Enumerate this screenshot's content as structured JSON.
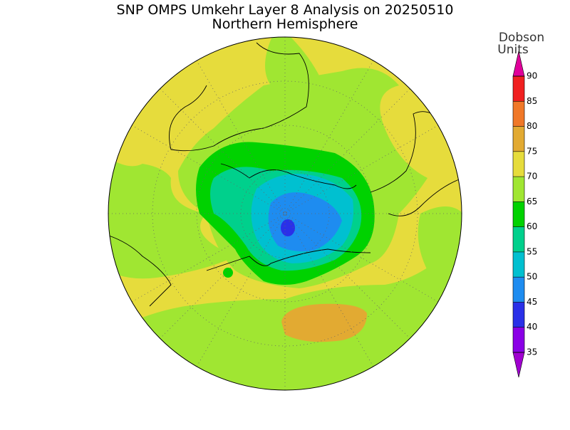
{
  "map": {
    "title": "SNP OMPS Umkehr Layer 8 Analysis on 20250510",
    "subtitle": "Northern Hemisphere",
    "colorbar": {
      "label_lines": [
        "Dobson",
        "Units"
      ],
      "ticks": [
        35,
        40,
        45,
        50,
        55,
        60,
        65,
        70,
        75,
        80,
        85,
        90
      ],
      "colors": [
        "#8a00e6",
        "#2a30e8",
        "#1e8cf0",
        "#00c0d0",
        "#00d08c",
        "#00d200",
        "#a0e632",
        "#e6dc3c",
        "#e2aa32",
        "#f07828",
        "#f02020"
      ],
      "under_color": "#a000d0",
      "over_color": "#e0009a"
    }
  }
}
